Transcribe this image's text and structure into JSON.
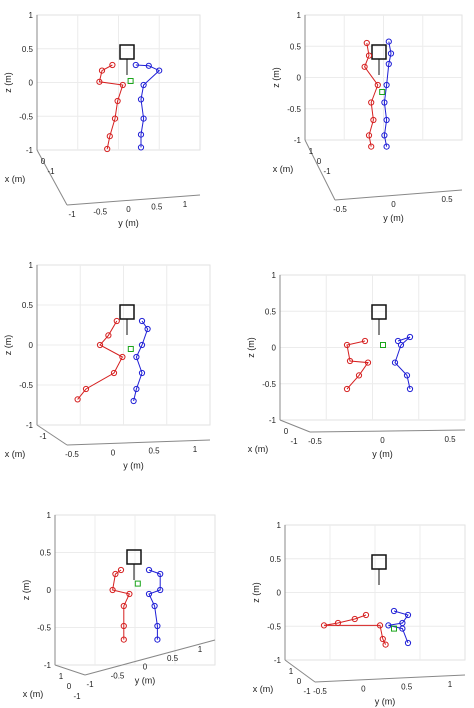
{
  "chart_data": [
    {
      "type": "scatter",
      "title": "",
      "zlabel": "z (m)",
      "ylabel": "y (m)",
      "xlabel": "x (m)",
      "z_ticks": [
        "1",
        "0.5",
        "0",
        "-0.5",
        "-1"
      ],
      "y_ticks": [
        "-1",
        "-0.5",
        "0",
        "0.5",
        "1"
      ],
      "x_ticks": [
        "0",
        "-1"
      ],
      "series": [
        {
          "color": "#1f1fd6",
          "points": [
            [
              0.06,
              0.25
            ],
            [
              0.16,
              0.24
            ],
            [
              0.24,
              0.18
            ],
            [
              0.12,
              0.0
            ],
            [
              0.1,
              -0.18
            ],
            [
              0.12,
              -0.42
            ],
            [
              0.1,
              -0.62
            ],
            [
              0.1,
              -0.78
            ]
          ]
        },
        {
          "color": "#d62020",
          "points": [
            [
              -0.12,
              0.25
            ],
            [
              -0.2,
              0.18
            ],
            [
              -0.22,
              0.04
            ],
            [
              -0.04,
              0.0
            ],
            [
              -0.08,
              -0.2
            ],
            [
              -0.1,
              -0.42
            ],
            [
              -0.14,
              -0.64
            ],
            [
              -0.16,
              -0.8
            ]
          ]
        },
        {
          "color": "#1aa51a",
          "points": [
            [
              0.02,
              0.05
            ]
          ]
        }
      ]
    },
    {
      "type": "scatter",
      "title": "",
      "zlabel": "z (m)",
      "ylabel": "y (m)",
      "xlabel": "x (m)",
      "z_ticks": [
        "1",
        "0.5",
        "0",
        "-0.5",
        "-1"
      ],
      "y_ticks": [
        "-0.5",
        "0",
        "0.5"
      ],
      "x_ticks": [
        "1",
        "0",
        "-1"
      ],
      "series": [
        {
          "color": "#1f1fd6",
          "points": [
            [
              0.08,
              0.62
            ],
            [
              0.1,
              0.45
            ],
            [
              0.08,
              0.3
            ],
            [
              0.06,
              0.0
            ],
            [
              0.04,
              -0.25
            ],
            [
              0.06,
              -0.5
            ],
            [
              0.04,
              -0.72
            ],
            [
              0.06,
              -0.88
            ]
          ]
        },
        {
          "color": "#d62020",
          "points": [
            [
              -0.12,
              0.6
            ],
            [
              -0.1,
              0.42
            ],
            [
              -0.14,
              0.26
            ],
            [
              -0.02,
              0.0
            ],
            [
              -0.08,
              -0.25
            ],
            [
              -0.06,
              -0.5
            ],
            [
              -0.1,
              -0.72
            ],
            [
              -0.08,
              -0.88
            ]
          ]
        },
        {
          "color": "#1aa51a",
          "points": [
            [
              0.02,
              -0.1
            ]
          ]
        }
      ]
    },
    {
      "type": "scatter",
      "title": "",
      "zlabel": "z (m)",
      "ylabel": "y (m)",
      "xlabel": "x (m)",
      "z_ticks": [
        "1",
        "0.5",
        "0",
        "-0.5",
        "-1"
      ],
      "y_ticks": [
        "-0.5",
        "0",
        "0.5",
        "1"
      ],
      "x_ticks": [
        "-1"
      ],
      "series": [
        {
          "color": "#1f1fd6",
          "points": [
            [
              0.1,
              0.3
            ],
            [
              0.14,
              0.2
            ],
            [
              0.1,
              0.0
            ],
            [
              0.06,
              -0.15
            ],
            [
              0.1,
              -0.35
            ],
            [
              0.06,
              -0.55
            ],
            [
              0.04,
              -0.7
            ]
          ]
        },
        {
          "color": "#d62020",
          "points": [
            [
              -0.08,
              0.3
            ],
            [
              -0.14,
              0.12
            ],
            [
              -0.2,
              0.0
            ],
            [
              -0.04,
              -0.15
            ],
            [
              -0.1,
              -0.35
            ],
            [
              -0.3,
              -0.55
            ],
            [
              -0.36,
              -0.68
            ]
          ]
        },
        {
          "color": "#1aa51a",
          "points": [
            [
              0.02,
              -0.05
            ]
          ]
        }
      ]
    },
    {
      "type": "scatter",
      "title": "",
      "zlabel": "z (m)",
      "ylabel": "y (m)",
      "xlabel": "x (m)",
      "z_ticks": [
        "1",
        "0.5",
        "0",
        "-0.5",
        "-1"
      ],
      "y_ticks": [
        "-0.5",
        "0",
        "0.5"
      ],
      "x_ticks": [
        "0",
        "-1"
      ],
      "series": [
        {
          "color": "#1f1fd6",
          "points": [
            [
              0.12,
              0.05
            ],
            [
              0.2,
              0.1
            ],
            [
              0.14,
              0.0
            ],
            [
              0.1,
              -0.22
            ],
            [
              0.18,
              -0.38
            ],
            [
              0.2,
              -0.55
            ]
          ]
        },
        {
          "color": "#d62020",
          "points": [
            [
              -0.1,
              0.05
            ],
            [
              -0.22,
              0.0
            ],
            [
              -0.2,
              -0.2
            ],
            [
              -0.08,
              -0.22
            ],
            [
              -0.14,
              -0.38
            ],
            [
              -0.22,
              -0.55
            ]
          ]
        },
        {
          "color": "#1aa51a",
          "points": [
            [
              0.02,
              0.0
            ]
          ]
        }
      ]
    },
    {
      "type": "scatter",
      "title": "",
      "zlabel": "z (m)",
      "ylabel": "y (m)",
      "xlabel": "x (m)",
      "z_ticks": [
        "1",
        "0.5",
        "0",
        "-0.5",
        "-1"
      ],
      "y_ticks": [
        "-1",
        "-0.5",
        "0",
        "0.5",
        "1"
      ],
      "x_ticks": [
        "1",
        "0",
        "-1"
      ],
      "series": [
        {
          "color": "#1f1fd6",
          "points": [
            [
              0.1,
              0.25
            ],
            [
              0.18,
              0.2
            ],
            [
              0.18,
              0.0
            ],
            [
              0.1,
              -0.05
            ],
            [
              0.14,
              -0.2
            ],
            [
              0.16,
              -0.45
            ],
            [
              0.16,
              -0.62
            ]
          ]
        },
        {
          "color": "#d62020",
          "points": [
            [
              -0.1,
              0.25
            ],
            [
              -0.14,
              0.2
            ],
            [
              -0.16,
              0.0
            ],
            [
              -0.04,
              -0.05
            ],
            [
              -0.08,
              -0.2
            ],
            [
              -0.08,
              -0.45
            ],
            [
              -0.08,
              -0.62
            ]
          ]
        },
        {
          "color": "#1aa51a",
          "points": [
            [
              0.02,
              0.08
            ]
          ]
        }
      ]
    },
    {
      "type": "scatter",
      "title": "",
      "zlabel": "z (m)",
      "ylabel": "y (m)",
      "xlabel": "x (m)",
      "z_ticks": [
        "1",
        "0.5",
        "0",
        "-0.5",
        "-1"
      ],
      "y_ticks": [
        "-0.5",
        "0",
        "0.5",
        "1"
      ],
      "x_ticks": [
        "1",
        "0",
        "-1"
      ],
      "series": [
        {
          "color": "#1f1fd6",
          "points": [
            [
              0.1,
              -0.2
            ],
            [
              0.2,
              -0.25
            ],
            [
              0.16,
              -0.35
            ],
            [
              0.06,
              -0.38
            ],
            [
              0.16,
              -0.42
            ],
            [
              0.2,
              -0.6
            ]
          ]
        },
        {
          "color": "#d62020",
          "points": [
            [
              -0.1,
              -0.25
            ],
            [
              -0.18,
              -0.3
            ],
            [
              -0.3,
              -0.35
            ],
            [
              -0.4,
              -0.38
            ],
            [
              0.0,
              -0.38
            ],
            [
              0.02,
              -0.55
            ],
            [
              0.04,
              -0.62
            ]
          ]
        },
        {
          "color": "#1aa51a",
          "points": [
            [
              0.1,
              -0.42
            ]
          ]
        }
      ]
    }
  ]
}
